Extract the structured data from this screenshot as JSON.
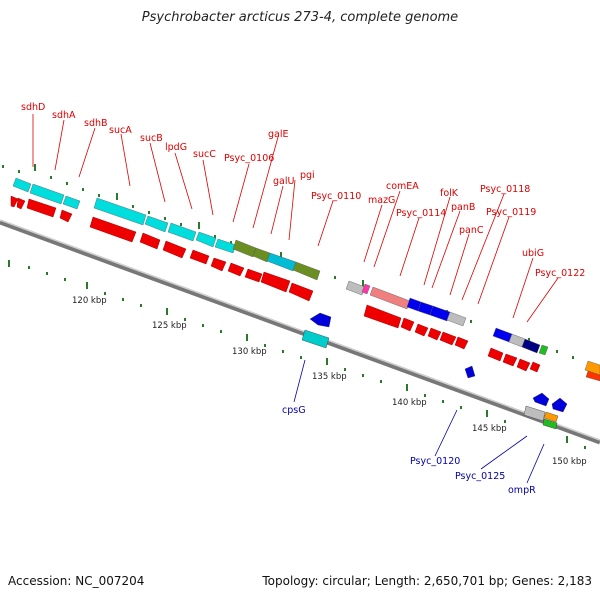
{
  "title": "Psychrobacter arcticus 273-4, complete genome",
  "footer": {
    "accession": "Accession: NC_007204",
    "summary": "Topology: circular; Length: 2,650,701 bp; Genes: 2,183"
  },
  "colors": {
    "forward_label": "#dd0000",
    "reverse_label": "#0000aa",
    "backbone": "#888888"
  },
  "scale_labels": [
    "120 kbp",
    "125 kbp",
    "130 kbp",
    "135 kbp",
    "140 kbp",
    "145 kbp",
    "150 kbp"
  ],
  "forward_gene_labels": [
    "sdhD",
    "sdhA",
    "sdhB",
    "sucA",
    "sucB",
    "lpdG",
    "sucC",
    "Psyc_0106",
    "galE",
    "galU",
    "pgi",
    "Psyc_0110",
    "comEA",
    "mazG",
    "Psyc_0114",
    "folK",
    "panB",
    "panC",
    "Psyc_0118",
    "Psyc_0119",
    "ubiG",
    "Psyc_0122"
  ],
  "reverse_gene_labels": [
    "cpsG",
    "Psyc_0120",
    "Psyc_0125",
    "ompR"
  ]
}
